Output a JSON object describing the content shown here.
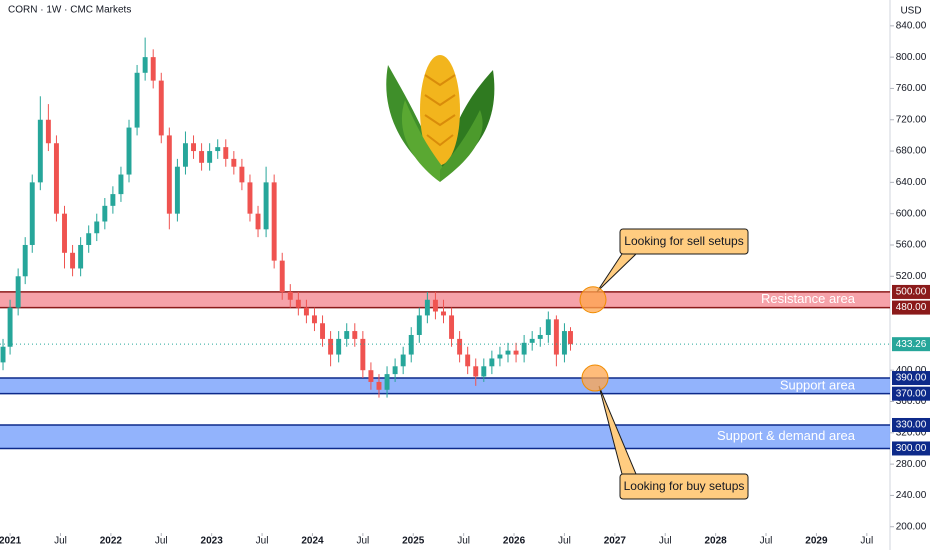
{
  "chart_data": {
    "type": "candlestick",
    "title": "CORN · 1W · CMC Markets",
    "currency": "USD",
    "x": [
      2020.93,
      2021.0,
      2021.08,
      2021.15,
      2021.22,
      2021.3,
      2021.38,
      2021.46,
      2021.54,
      2021.62,
      2021.7,
      2021.78,
      2021.86,
      2021.94,
      2022.02,
      2022.1,
      2022.18,
      2022.26,
      2022.34,
      2022.42,
      2022.5,
      2022.58,
      2022.66,
      2022.74,
      2022.82,
      2022.9,
      2022.98,
      2023.06,
      2023.14,
      2023.22,
      2023.3,
      2023.38,
      2023.46,
      2023.54,
      2023.62,
      2023.7,
      2023.78,
      2023.86,
      2023.94,
      2024.02,
      2024.1,
      2024.18,
      2024.26,
      2024.34,
      2024.42,
      2024.5,
      2024.58,
      2024.66,
      2024.74,
      2024.82,
      2024.9,
      2024.98,
      2025.06,
      2025.14,
      2025.22,
      2025.3,
      2025.38,
      2025.46,
      2025.54,
      2025.62,
      2025.7,
      2025.78,
      2025.86,
      2025.94,
      2026.02,
      2026.1,
      2026.18,
      2026.26,
      2026.34,
      2026.42,
      2026.5,
      2026.56
    ],
    "open": [
      410,
      430,
      480,
      520,
      560,
      640,
      720,
      690,
      600,
      550,
      530,
      560,
      575,
      590,
      610,
      625,
      650,
      710,
      780,
      800,
      770,
      700,
      600,
      660,
      690,
      680,
      665,
      680,
      685,
      670,
      660,
      640,
      600,
      580,
      640,
      540,
      500,
      490,
      480,
      470,
      460,
      440,
      420,
      440,
      450,
      440,
      400,
      385,
      375,
      395,
      405,
      420,
      445,
      470,
      490,
      475,
      470,
      440,
      420,
      405,
      392,
      405,
      415,
      420,
      425,
      420,
      435,
      440,
      445,
      465,
      420,
      450
    ],
    "high": [
      440,
      490,
      530,
      570,
      650,
      750,
      740,
      700,
      610,
      560,
      570,
      585,
      600,
      620,
      635,
      660,
      720,
      790,
      825,
      810,
      780,
      710,
      670,
      705,
      700,
      690,
      690,
      695,
      695,
      680,
      670,
      650,
      610,
      660,
      650,
      550,
      510,
      500,
      490,
      480,
      470,
      450,
      450,
      460,
      460,
      450,
      410,
      395,
      405,
      415,
      430,
      455,
      480,
      500,
      500,
      490,
      480,
      450,
      430,
      415,
      415,
      425,
      430,
      435,
      435,
      445,
      450,
      455,
      475,
      470,
      460,
      455
    ],
    "low": [
      400,
      420,
      470,
      510,
      550,
      630,
      680,
      590,
      530,
      520,
      520,
      550,
      565,
      580,
      600,
      615,
      640,
      700,
      770,
      760,
      690,
      580,
      590,
      650,
      670,
      655,
      655,
      670,
      660,
      650,
      630,
      590,
      570,
      570,
      530,
      490,
      480,
      470,
      460,
      450,
      430,
      405,
      410,
      430,
      430,
      390,
      375,
      365,
      365,
      385,
      395,
      410,
      435,
      460,
      465,
      460,
      430,
      410,
      395,
      380,
      385,
      395,
      405,
      410,
      410,
      410,
      425,
      430,
      435,
      405,
      410,
      425
    ],
    "close": [
      430,
      480,
      520,
      560,
      640,
      720,
      690,
      600,
      550,
      530,
      560,
      575,
      590,
      610,
      625,
      650,
      710,
      780,
      800,
      770,
      700,
      600,
      660,
      690,
      680,
      665,
      680,
      685,
      670,
      660,
      640,
      600,
      580,
      640,
      540,
      500,
      490,
      480,
      470,
      460,
      440,
      420,
      440,
      450,
      440,
      400,
      385,
      375,
      395,
      405,
      420,
      445,
      470,
      490,
      475,
      470,
      440,
      420,
      405,
      392,
      405,
      415,
      420,
      425,
      420,
      435,
      440,
      445,
      465,
      420,
      450,
      433.26
    ],
    "up_color": "#26a69a",
    "down_color": "#ef5350",
    "last_price": 433.26,
    "last_price_label": "433.26",
    "xlim": [
      2020.9,
      2029.73
    ],
    "ylim": [
      192,
      873
    ],
    "xticks": [
      {
        "value": 2021,
        "label": "2021"
      },
      {
        "value": 2021.5,
        "label": "Jul"
      },
      {
        "value": 2022,
        "label": "2022"
      },
      {
        "value": 2022.5,
        "label": "Jul"
      },
      {
        "value": 2023,
        "label": "2023"
      },
      {
        "value": 2023.5,
        "label": "Jul"
      },
      {
        "value": 2024,
        "label": "2024"
      },
      {
        "value": 2024.5,
        "label": "Jul"
      },
      {
        "value": 2025,
        "label": "2025"
      },
      {
        "value": 2025.5,
        "label": "Jul"
      },
      {
        "value": 2026,
        "label": "2026"
      },
      {
        "value": 2026.5,
        "label": "Jul"
      },
      {
        "value": 2027,
        "label": "2027"
      },
      {
        "value": 2027.5,
        "label": "Jul"
      },
      {
        "value": 2028,
        "label": "2028"
      },
      {
        "value": 2028.5,
        "label": "Jul"
      },
      {
        "value": 2029,
        "label": "2029"
      },
      {
        "value": 2029.5,
        "label": "Jul"
      }
    ],
    "yticks": [
      {
        "value": 840,
        "label": "840.00"
      },
      {
        "value": 800,
        "label": "800.00"
      },
      {
        "value": 760,
        "label": "760.00"
      },
      {
        "value": 720,
        "label": "720.00"
      },
      {
        "value": 680,
        "label": "680.00"
      },
      {
        "value": 640,
        "label": "640.00"
      },
      {
        "value": 600,
        "label": "600.00"
      },
      {
        "value": 560,
        "label": "560.00"
      },
      {
        "value": 520,
        "label": "520.00"
      },
      {
        "value": 400,
        "label": "400.00"
      },
      {
        "value": 360,
        "label": "360.00"
      },
      {
        "value": 320,
        "label": "320.00"
      },
      {
        "value": 280,
        "label": "280.00"
      },
      {
        "value": 240,
        "label": "240.00"
      },
      {
        "value": 200,
        "label": "200.00"
      }
    ],
    "zones": [
      {
        "name": "Resistance area",
        "low": 480,
        "high": 500,
        "low_label": "480.00",
        "high_label": "500.00",
        "color": "#f4929a",
        "border": "#8b1a1a"
      },
      {
        "name": "Support area",
        "low": 370,
        "high": 390,
        "low_label": "370.00",
        "high_label": "390.00",
        "color": "#7fa6fb",
        "border": "#0d2a8a"
      },
      {
        "name": "Support & demand area",
        "low": 300,
        "high": 330,
        "low_label": "300.00",
        "high_label": "330.00",
        "color": "#7fa6fb",
        "border": "#0d2a8a"
      }
    ],
    "annotations": [
      "Looking for sell setups",
      "Looking for buy setups"
    ]
  }
}
